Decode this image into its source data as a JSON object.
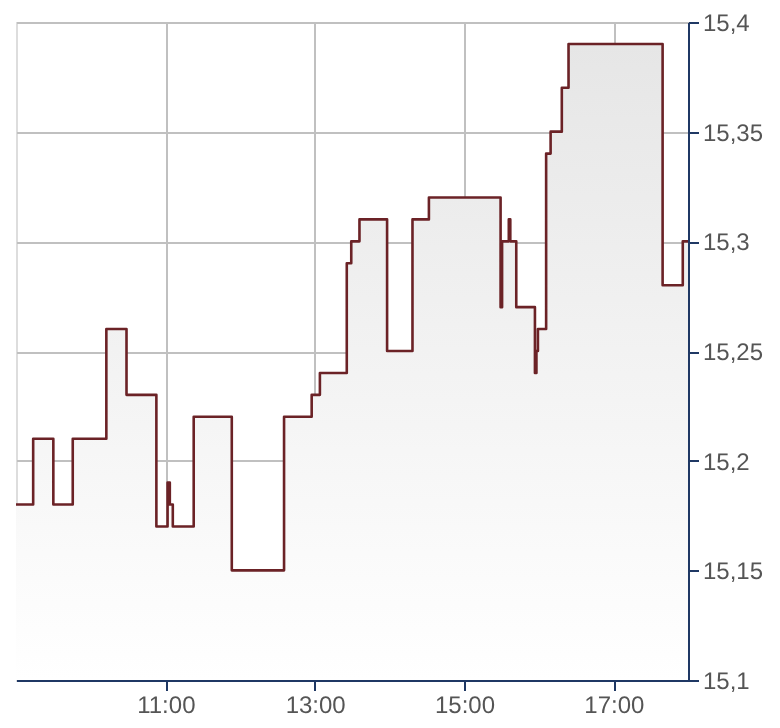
{
  "chart_data": {
    "type": "area",
    "x": [
      9,
      9.23,
      9.23,
      9.5,
      9.5,
      9.76,
      9.76,
      10.21,
      10.21,
      10.48,
      10.48,
      10.88,
      10.88,
      11.03,
      11.03,
      11.06,
      11.06,
      11.1,
      11.1,
      11.38,
      11.38,
      11.89,
      11.89,
      12.59,
      12.59,
      12.96,
      12.96,
      13.07,
      13.07,
      13.43,
      13.43,
      13.49,
      13.49,
      13.6,
      13.6,
      13.97,
      13.97,
      14.31,
      14.31,
      14.53,
      14.53,
      15.49,
      15.49,
      15.51,
      15.51,
      15.6,
      15.6,
      15.62,
      15.62,
      15.7,
      15.7,
      15.95,
      15.95,
      15.97,
      15.97,
      15.99,
      15.99,
      16.1,
      16.1,
      16.16,
      16.16,
      16.31,
      16.31,
      16.4,
      16.4,
      17.66,
      17.66,
      17.93,
      17.93,
      18
    ],
    "series": [
      {
        "color": "#6b2226",
        "values": [
          15.18,
          15.18,
          15.21,
          15.21,
          15.18,
          15.18,
          15.21,
          15.21,
          15.26,
          15.26,
          15.23,
          15.23,
          15.17,
          15.17,
          15.19,
          15.19,
          15.18,
          15.18,
          15.17,
          15.17,
          15.22,
          15.22,
          15.15,
          15.15,
          15.22,
          15.22,
          15.23,
          15.23,
          15.24,
          15.24,
          15.29,
          15.29,
          15.3,
          15.3,
          15.31,
          15.31,
          15.25,
          15.25,
          15.31,
          15.31,
          15.32,
          15.32,
          15.27,
          15.27,
          15.3,
          15.3,
          15.31,
          15.31,
          15.3,
          15.3,
          15.27,
          15.27,
          15.24,
          15.24,
          15.25,
          15.25,
          15.26,
          15.26,
          15.34,
          15.34,
          15.35,
          15.35,
          15.37,
          15.37,
          15.39,
          15.39,
          15.28,
          15.28,
          15.3,
          15.3
        ]
      }
    ],
    "xlim": [
      9,
      18
    ],
    "xticks": [
      {
        "value": 11,
        "label": "11:00"
      },
      {
        "value": 13,
        "label": "13:00"
      },
      {
        "value": 15,
        "label": "15:00"
      },
      {
        "value": 17,
        "label": "17:00"
      }
    ],
    "ylim": [
      15.1,
      15.4
    ],
    "yticks": [
      {
        "value": 15.1,
        "label": "15,1"
      },
      {
        "value": 15.15,
        "label": "15,15"
      },
      {
        "value": 15.2,
        "label": "15,2"
      },
      {
        "value": 15.25,
        "label": "15,25"
      },
      {
        "value": 15.3,
        "label": "15,3"
      },
      {
        "value": 15.35,
        "label": "15,35"
      },
      {
        "value": 15.4,
        "label": "15,4"
      }
    ],
    "grid": true
  }
}
